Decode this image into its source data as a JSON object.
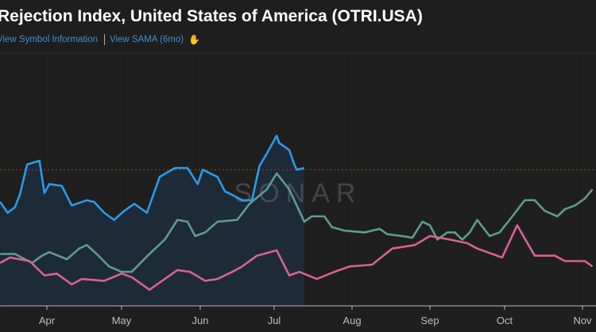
{
  "header": {
    "title": "Rejection Index, United States of America (OTRI.USA)",
    "link_symbol_info": "View Symbol Information",
    "link_sama": "View SAMA (6mo)",
    "sama_icon": "chart-hand-icon"
  },
  "chart_data": {
    "type": "line",
    "watermark": "SONAR",
    "x_tick_labels": [
      "Apr",
      "May",
      "Jun",
      "Jul",
      "Aug",
      "Sep",
      "Oct",
      "Nov"
    ],
    "y_axis_shown": false,
    "grid": "vertical month lines",
    "reference_line": {
      "value": 76,
      "style": "dashed",
      "color": "#a33a3a"
    },
    "series": [
      {
        "color": "#2b9bea",
        "filled": true,
        "fill_color": "#1d2a38",
        "points": [
          [
            "03-13",
            58
          ],
          [
            "03-16",
            52
          ],
          [
            "03-19",
            55
          ],
          [
            "03-21",
            62
          ],
          [
            "03-24",
            79
          ],
          [
            "03-29",
            81
          ],
          [
            "03-31",
            63
          ],
          [
            "04-02",
            68
          ],
          [
            "04-07",
            67
          ],
          [
            "04-11",
            56
          ],
          [
            "04-17",
            59
          ],
          [
            "04-20",
            58
          ],
          [
            "04-24",
            52
          ],
          [
            "04-28",
            48
          ],
          [
            "05-02",
            53
          ],
          [
            "05-06",
            57
          ],
          [
            "05-11",
            52
          ],
          [
            "05-16",
            72
          ],
          [
            "05-22",
            77
          ],
          [
            "05-27",
            77
          ],
          [
            "05-31",
            68
          ],
          [
            "06-02",
            76
          ],
          [
            "06-08",
            72
          ],
          [
            "06-11",
            64
          ],
          [
            "06-14",
            62
          ],
          [
            "06-18",
            59
          ],
          [
            "06-22",
            59
          ],
          [
            "06-25",
            78
          ],
          [
            "06-28",
            85
          ],
          [
            "07-02",
            95
          ],
          [
            "07-03",
            91
          ],
          [
            "07-07",
            87
          ],
          [
            "07-09",
            79
          ],
          [
            "07-10",
            76
          ],
          [
            "07-13",
            77
          ]
        ]
      },
      {
        "color": "#5e9c8b",
        "filled": false,
        "points": [
          [
            "03-13",
            29
          ],
          [
            "03-19",
            29
          ],
          [
            "03-26",
            24
          ],
          [
            "03-30",
            28
          ],
          [
            "04-02",
            30
          ],
          [
            "04-09",
            26
          ],
          [
            "04-14",
            32
          ],
          [
            "04-17",
            34
          ],
          [
            "04-21",
            29
          ],
          [
            "04-26",
            22
          ],
          [
            "05-01",
            19
          ],
          [
            "05-05",
            19
          ],
          [
            "05-12",
            29
          ],
          [
            "05-18",
            37
          ],
          [
            "05-23",
            48
          ],
          [
            "05-27",
            47
          ],
          [
            "05-30",
            39
          ],
          [
            "06-03",
            41
          ],
          [
            "06-08",
            47
          ],
          [
            "06-16",
            48
          ],
          [
            "06-21",
            57
          ],
          [
            "06-28",
            65
          ],
          [
            "07-02",
            74
          ],
          [
            "07-07",
            65
          ],
          [
            "07-13",
            47
          ],
          [
            "07-16",
            50
          ],
          [
            "07-21",
            50
          ],
          [
            "07-24",
            44
          ],
          [
            "07-29",
            42
          ],
          [
            "08-06",
            41
          ],
          [
            "08-12",
            43
          ],
          [
            "08-15",
            40
          ],
          [
            "08-21",
            39
          ],
          [
            "08-25",
            38
          ],
          [
            "08-29",
            47
          ],
          [
            "09-01",
            45
          ],
          [
            "09-04",
            37
          ],
          [
            "09-08",
            41
          ],
          [
            "09-11",
            41
          ],
          [
            "09-14",
            37
          ],
          [
            "09-17",
            41
          ],
          [
            "09-20",
            48
          ],
          [
            "09-25",
            39
          ],
          [
            "09-29",
            41
          ],
          [
            "10-03",
            48
          ],
          [
            "10-09",
            59
          ],
          [
            "10-13",
            59
          ],
          [
            "10-17",
            53
          ],
          [
            "10-22",
            50
          ],
          [
            "10-25",
            54
          ],
          [
            "10-29",
            56
          ],
          [
            "11-02",
            60
          ],
          [
            "11-05",
            65
          ]
        ]
      },
      {
        "color": "#d9628f",
        "filled": false,
        "points": [
          [
            "03-13",
            24
          ],
          [
            "03-17",
            27
          ],
          [
            "03-25",
            25
          ],
          [
            "03-31",
            17
          ],
          [
            "04-05",
            18
          ],
          [
            "04-11",
            12
          ],
          [
            "04-15",
            15
          ],
          [
            "04-24",
            14
          ],
          [
            "05-01",
            18
          ],
          [
            "05-05",
            16
          ],
          [
            "05-12",
            9
          ],
          [
            "05-19",
            16
          ],
          [
            "05-23",
            20
          ],
          [
            "05-28",
            19
          ],
          [
            "06-03",
            14
          ],
          [
            "06-08",
            15
          ],
          [
            "06-14",
            19
          ],
          [
            "06-18",
            22
          ],
          [
            "06-24",
            28
          ],
          [
            "07-02",
            31
          ],
          [
            "07-07",
            17
          ],
          [
            "07-11",
            19
          ],
          [
            "07-18",
            15
          ],
          [
            "07-25",
            19
          ],
          [
            "07-31",
            22
          ],
          [
            "08-09",
            23
          ],
          [
            "08-17",
            32
          ],
          [
            "08-26",
            34
          ],
          [
            "09-01",
            39
          ],
          [
            "09-09",
            37
          ],
          [
            "09-16",
            35
          ],
          [
            "09-20",
            32
          ],
          [
            "09-30",
            27
          ],
          [
            "10-06",
            45
          ],
          [
            "10-13",
            28
          ],
          [
            "10-21",
            28
          ],
          [
            "10-25",
            25
          ],
          [
            "11-02",
            25
          ],
          [
            "11-05",
            22
          ]
        ]
      }
    ]
  }
}
